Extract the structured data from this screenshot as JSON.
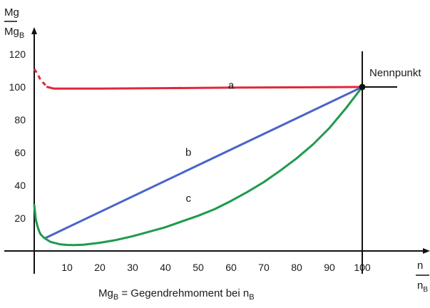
{
  "chart_data": {
    "type": "line",
    "y_label": {
      "main": "Mg",
      "sub": "",
      "den_main": "Mg",
      "den_sub": "B"
    },
    "x_label": {
      "main": "n",
      "sub": "",
      "den_main": "n",
      "den_sub": "B"
    },
    "x_ticks": [
      "10",
      "20",
      "30",
      "40",
      "50",
      "60",
      "70",
      "80",
      "90",
      "100"
    ],
    "y_ticks": [
      "20",
      "40",
      "60",
      "80",
      "100",
      "120"
    ],
    "xlim": [
      -1,
      120
    ],
    "ylim": [
      0,
      130
    ],
    "grid": false,
    "annotation": "Nennpunkt",
    "nominal_point": {
      "x": 100,
      "y": 100
    },
    "series": [
      {
        "name": "a",
        "color": "#e0283c",
        "dashed_start": [
          [
            0,
            111
          ],
          [
            1,
            108
          ],
          [
            2,
            104
          ],
          [
            4,
            100
          ]
        ],
        "x": [
          4,
          6,
          10,
          20,
          40,
          60,
          80,
          100
        ],
        "y": [
          100,
          99,
          99,
          99,
          99.3,
          99.6,
          99.8,
          100
        ]
      },
      {
        "name": "b",
        "color": "#4a64c8",
        "x": [
          3.5,
          100
        ],
        "y": [
          8,
          100
        ]
      },
      {
        "name": "c",
        "color": "#1f9a4c",
        "x": [
          0,
          0.5,
          1,
          1.5,
          2,
          3,
          5,
          8,
          10,
          12,
          15,
          20,
          25,
          30,
          35,
          40,
          45,
          50,
          55,
          60,
          65,
          70,
          75,
          80,
          85,
          90,
          95,
          100
        ],
        "y": [
          28,
          19,
          15,
          12,
          10,
          8,
          5.5,
          4,
          3.7,
          3.6,
          3.8,
          5,
          6.7,
          9,
          11.7,
          14.5,
          18,
          21.5,
          25.5,
          30.5,
          36,
          42,
          49,
          56.5,
          65,
          75,
          87,
          100
        ]
      }
    ]
  },
  "caption": {
    "main": "Mg",
    "sub": "B",
    "text": " = Gegendrehmoment bei n",
    "sub2": "B"
  }
}
